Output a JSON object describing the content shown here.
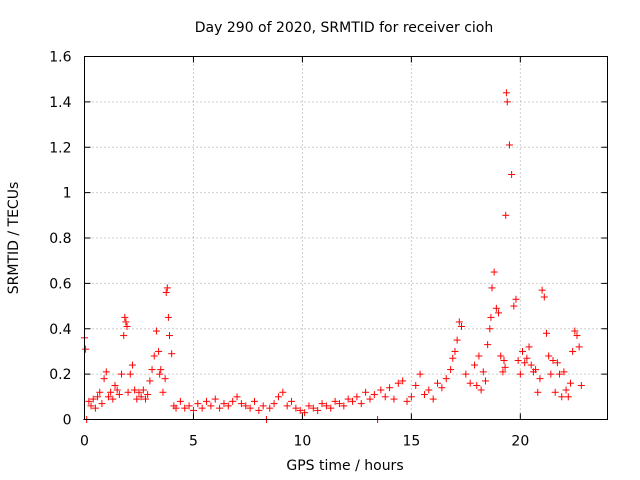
{
  "chart_data": {
    "type": "scatter",
    "title": "Day 290 of 2020, SRMTID for receiver cioh",
    "xlabel": "GPS time / hours",
    "ylabel": "SRMTID / TECUs",
    "xlim": [
      0,
      24
    ],
    "ylim": [
      0,
      1.6
    ],
    "x_ticks": [
      0,
      5,
      10,
      15,
      20
    ],
    "x_tick_labels": [
      "0",
      "5",
      "10",
      "15",
      "20"
    ],
    "y_ticks": [
      0,
      0.2,
      0.4,
      0.6,
      0.8,
      1.0,
      1.2,
      1.4,
      1.6
    ],
    "y_tick_labels": [
      "0",
      "0.2",
      "0.4",
      "0.6",
      "0.8",
      "1",
      "1.2",
      "1.4",
      "1.6"
    ],
    "grid": true,
    "marker": "+",
    "color": "#ff0000",
    "series": [
      {
        "name": "SRMTID",
        "x": [
          0.0,
          0.05,
          0.1,
          0.2,
          0.3,
          0.4,
          0.5,
          0.6,
          0.7,
          0.8,
          0.9,
          1.0,
          1.1,
          1.2,
          1.3,
          1.4,
          1.5,
          1.6,
          1.7,
          1.8,
          1.85,
          1.9,
          1.95,
          2.0,
          2.1,
          2.2,
          2.3,
          2.4,
          2.5,
          2.6,
          2.7,
          2.8,
          2.9,
          3.0,
          3.1,
          3.2,
          3.3,
          3.4,
          3.45,
          3.5,
          3.6,
          3.7,
          3.75,
          3.8,
          3.85,
          3.9,
          4.0,
          4.1,
          4.2,
          4.4,
          4.6,
          4.8,
          5.0,
          5.2,
          5.4,
          5.6,
          5.8,
          6.0,
          6.2,
          6.4,
          6.6,
          6.8,
          7.0,
          7.2,
          7.4,
          7.6,
          7.8,
          8.0,
          8.2,
          8.35,
          8.5,
          8.7,
          8.9,
          9.1,
          9.3,
          9.5,
          9.7,
          9.9,
          10.1,
          10.3,
          10.5,
          10.7,
          10.9,
          11.1,
          11.3,
          11.5,
          11.7,
          11.9,
          12.1,
          12.3,
          12.5,
          12.7,
          12.9,
          13.1,
          13.3,
          13.45,
          13.6,
          13.8,
          14.0,
          14.2,
          14.4,
          14.6,
          14.8,
          15.0,
          15.2,
          15.4,
          15.6,
          15.8,
          16.0,
          16.2,
          16.4,
          16.6,
          16.8,
          16.9,
          17.0,
          17.1,
          17.2,
          17.3,
          17.5,
          17.7,
          17.9,
          18.0,
          18.1,
          18.2,
          18.3,
          18.4,
          18.5,
          18.6,
          18.65,
          18.7,
          18.8,
          18.9,
          19.0,
          19.1,
          19.2,
          19.25,
          19.3,
          19.33,
          19.36,
          19.4,
          19.5,
          19.6,
          19.7,
          19.8,
          19.9,
          20.0,
          20.1,
          20.2,
          20.3,
          20.4,
          20.5,
          20.6,
          20.7,
          20.8,
          20.9,
          21.0,
          21.1,
          21.2,
          21.3,
          21.4,
          21.5,
          21.6,
          21.7,
          21.8,
          21.9,
          22.0,
          22.1,
          22.2,
          22.3,
          22.4,
          22.5,
          22.6,
          22.7,
          22.8
        ],
        "y": [
          0.36,
          0.31,
          0.0,
          0.08,
          0.06,
          0.09,
          0.05,
          0.1,
          0.12,
          0.07,
          0.18,
          0.21,
          0.1,
          0.12,
          0.09,
          0.15,
          0.13,
          0.11,
          0.2,
          0.37,
          0.45,
          0.43,
          0.41,
          0.12,
          0.2,
          0.24,
          0.13,
          0.09,
          0.12,
          0.1,
          0.13,
          0.09,
          0.11,
          0.17,
          0.22,
          0.28,
          0.39,
          0.3,
          0.2,
          0.22,
          0.12,
          0.18,
          0.56,
          0.58,
          0.45,
          0.37,
          0.29,
          0.06,
          0.05,
          0.08,
          0.05,
          0.06,
          0.04,
          0.07,
          0.05,
          0.08,
          0.06,
          0.09,
          0.05,
          0.07,
          0.06,
          0.08,
          0.1,
          0.07,
          0.06,
          0.05,
          0.08,
          0.04,
          0.06,
          0.0,
          0.05,
          0.07,
          0.1,
          0.12,
          0.06,
          0.08,
          0.05,
          0.04,
          0.03,
          0.06,
          0.05,
          0.04,
          0.07,
          0.06,
          0.05,
          0.08,
          0.07,
          0.06,
          0.09,
          0.08,
          0.1,
          0.07,
          0.12,
          0.09,
          0.11,
          0.0,
          0.13,
          0.1,
          0.14,
          0.09,
          0.16,
          0.17,
          0.08,
          0.1,
          0.15,
          0.2,
          0.11,
          0.13,
          0.09,
          0.16,
          0.14,
          0.18,
          0.22,
          0.27,
          0.3,
          0.35,
          0.43,
          0.41,
          0.2,
          0.16,
          0.24,
          0.15,
          0.28,
          0.13,
          0.21,
          0.17,
          0.33,
          0.4,
          0.45,
          0.58,
          0.65,
          0.49,
          0.47,
          0.28,
          0.21,
          0.26,
          0.23,
          0.9,
          1.44,
          1.4,
          1.21,
          1.08,
          0.5,
          0.53,
          0.26,
          0.2,
          0.3,
          0.25,
          0.27,
          0.32,
          0.24,
          0.21,
          0.22,
          0.12,
          0.18,
          0.57,
          0.54,
          0.38,
          0.28,
          0.2,
          0.26,
          0.12,
          0.25,
          0.2,
          0.1,
          0.21,
          0.13,
          0.1,
          0.16,
          0.3,
          0.39,
          0.37,
          0.32,
          0.15
        ]
      }
    ]
  }
}
